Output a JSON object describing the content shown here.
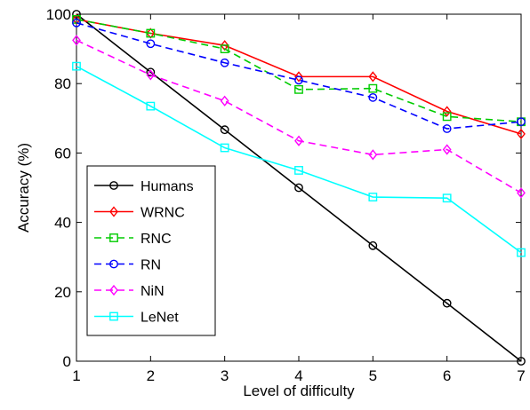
{
  "chart_data": {
    "type": "line",
    "title": "",
    "xlabel": "Level of difficulty",
    "ylabel": "Accuracy (%)",
    "xlim": [
      1,
      7
    ],
    "ylim": [
      0,
      100
    ],
    "xticks": [
      "1",
      "2",
      "3",
      "4",
      "5",
      "6",
      "7"
    ],
    "yticks": [
      "0",
      "20",
      "40",
      "60",
      "80",
      "100"
    ],
    "grid": false,
    "legend_position": "bottom-left",
    "x": [
      1,
      2,
      3,
      4,
      5,
      6,
      7
    ],
    "series": [
      {
        "name": "Humans",
        "color": "#000000",
        "dash": "solid",
        "marker": "circle",
        "values": [
          100,
          83.3,
          66.7,
          50,
          33.3,
          16.7,
          0
        ]
      },
      {
        "name": "WRNC",
        "color": "#ff0000",
        "dash": "solid",
        "marker": "diamond",
        "values": [
          98.5,
          94.5,
          91,
          82,
          82,
          72,
          65.5
        ]
      },
      {
        "name": "RNC",
        "color": "#00cc00",
        "dash": "dashed",
        "marker": "square",
        "values": [
          98.5,
          94.5,
          90,
          78.3,
          78.6,
          70.5,
          69
        ]
      },
      {
        "name": "RN",
        "color": "#0000ff",
        "dash": "dashed",
        "marker": "circle",
        "values": [
          97.5,
          91.5,
          86,
          81,
          76,
          67,
          69
        ]
      },
      {
        "name": "NiN",
        "color": "#ff00ff",
        "dash": "dashed",
        "marker": "diamond",
        "values": [
          92.5,
          82.5,
          75,
          63.5,
          59.5,
          61,
          48.5
        ]
      },
      {
        "name": "LeNet",
        "color": "#00ffff",
        "dash": "solid",
        "marker": "square",
        "values": [
          85,
          73.5,
          61.5,
          55,
          47.3,
          47,
          31.3
        ]
      }
    ]
  }
}
